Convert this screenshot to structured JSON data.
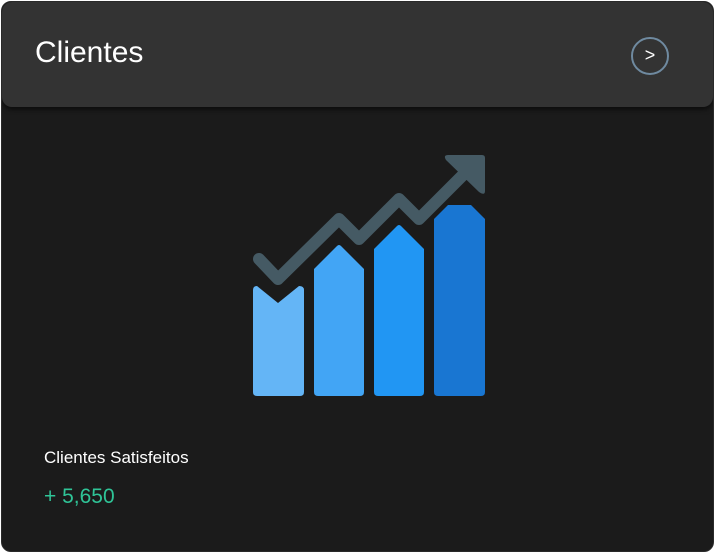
{
  "card": {
    "title": "Clientes",
    "next_button_label": ">",
    "icon": "growth-chart-icon",
    "stat_label": "Clientes Satisfeitos",
    "stat_value": "+ 5,650",
    "colors": {
      "value": "#2fc497",
      "bars": [
        "#64b5f6",
        "#42a5f5",
        "#2196f3",
        "#1976d2"
      ],
      "trend": "#455a64"
    }
  }
}
